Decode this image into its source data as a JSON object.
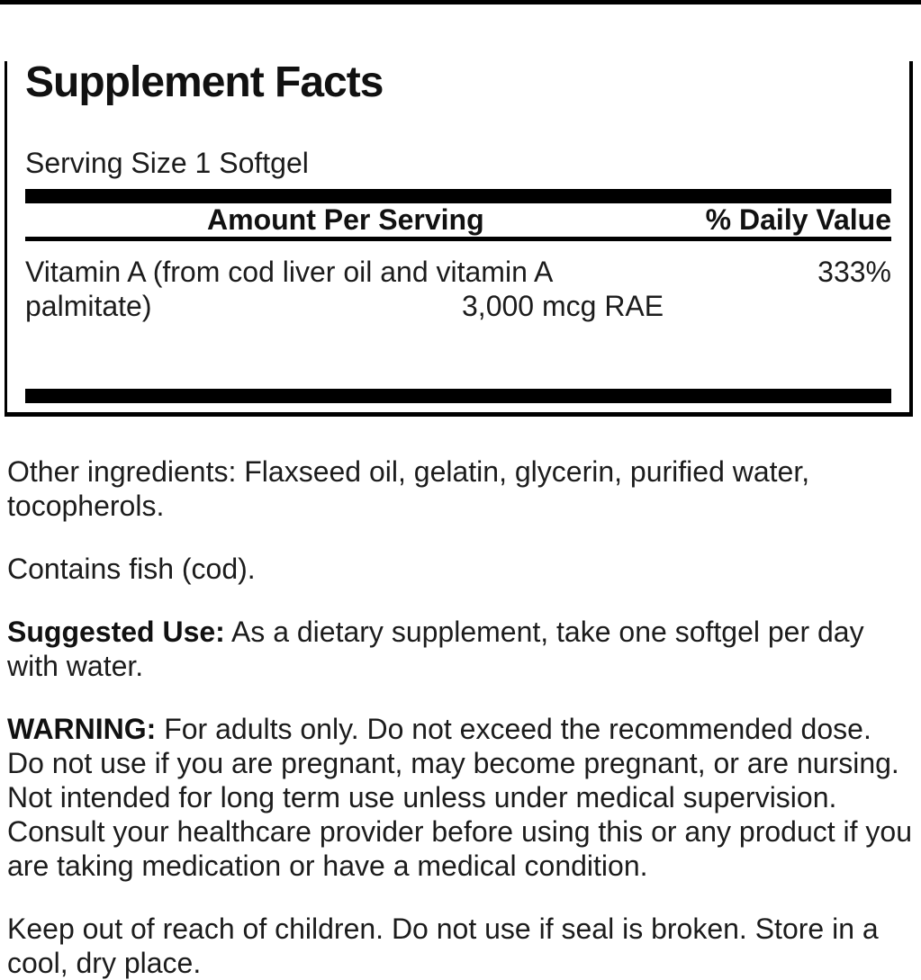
{
  "panel": {
    "title": "Supplement Facts",
    "serving_size": "Serving Size 1 Softgel",
    "columns": {
      "amount_header": "Amount Per Serving",
      "dv_header": "% Daily Value"
    },
    "nutrients": [
      {
        "name": "Vitamin A (from cod liver oil and vitamin A palmitate)",
        "amount": "3,000 mcg RAE",
        "daily_value": "333%"
      }
    ]
  },
  "sections": {
    "other_ingredients": "Other ingredients: Flaxseed oil, gelatin, glycerin, purified water, tocopherols.",
    "allergen_statement": "Contains fish (cod).",
    "suggested_use_label": "Suggested Use:",
    "suggested_use_text": "As a dietary supplement, take one softgel per day with water.",
    "warning_label": "WARNING:",
    "warning_text": "For adults only. Do not exceed the recommended dose. Do not use if you are pregnant, may become pregnant, or are nursing. Not intended for long term use unless under medical supervision. Consult your healthcare provider before using this or any product if you are taking medication or have a medical condition.",
    "storage_statement": "Keep out of reach of children. Do not use if seal is broken. Store in a cool, dry place."
  },
  "colors": {
    "text": "#1c1c1c",
    "rule": "#000000",
    "background": "#ffffff"
  }
}
